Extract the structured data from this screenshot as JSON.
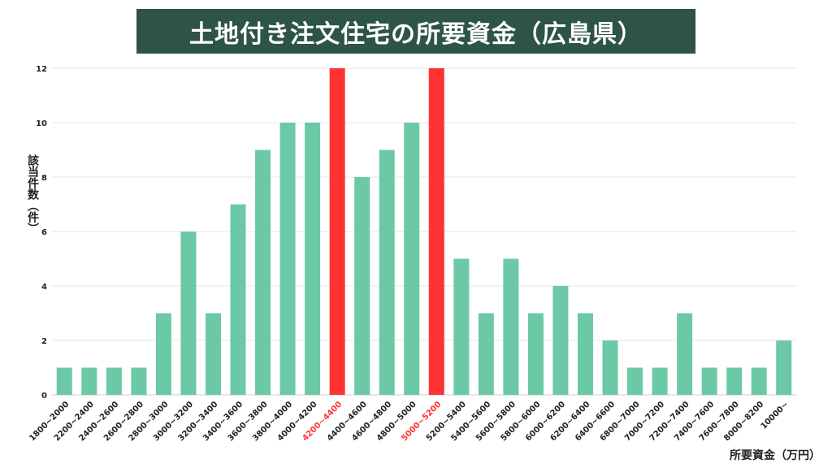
{
  "chart_data": {
    "type": "bar",
    "title": "土地付き注文住宅の所要資金（広島県）",
    "xlabel": "所要資金（万円）",
    "ylabel": "該当件数（件）",
    "ylim": [
      0,
      12
    ],
    "yticks": [
      0,
      2,
      4,
      6,
      8,
      10,
      12
    ],
    "grid": true,
    "categories": [
      "1800~2000",
      "2200~2400",
      "2400~2600",
      "2600~2800",
      "2800~3000",
      "3000~3200",
      "3200~3400",
      "3400~3600",
      "3600~3800",
      "3800~4000",
      "4000~4200",
      "4200~4400",
      "4400~4600",
      "4600~4800",
      "4800~5000",
      "5000~5200",
      "5200~5400",
      "5400~5600",
      "5600~5800",
      "5800~6000",
      "6000~6200",
      "6200~6400",
      "6400~6600",
      "6800~7000",
      "7000~7200",
      "7200~7400",
      "7400~7600",
      "7600~7800",
      "8000~8200",
      "10000~"
    ],
    "values": [
      1,
      1,
      1,
      1,
      3,
      6,
      3,
      7,
      9,
      10,
      10,
      12,
      8,
      9,
      10,
      12,
      5,
      3,
      5,
      3,
      4,
      3,
      2,
      1,
      1,
      3,
      1,
      1,
      1,
      2
    ],
    "highlighted": [
      "4200~4400",
      "5000~5200"
    ],
    "colors": {
      "bar": "#6cc9a5",
      "highlight": "#ff3333",
      "grid": "#e6e6e6"
    }
  }
}
